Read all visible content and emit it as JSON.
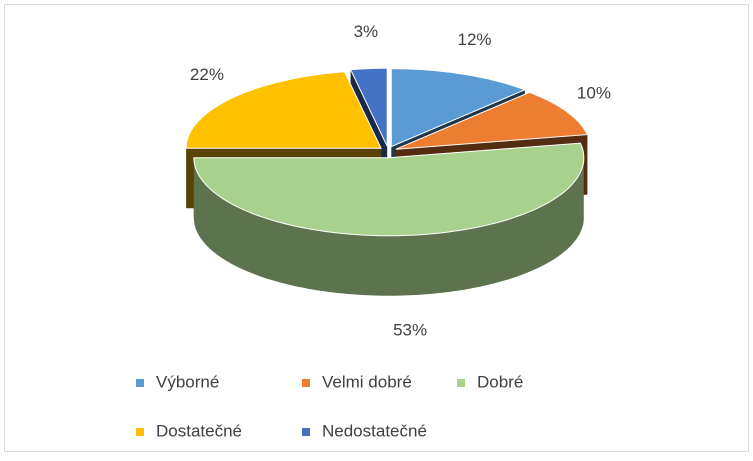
{
  "chart_data": {
    "type": "pie3d",
    "categories": [
      "Výborné",
      "Velmi dobré",
      "Dobré",
      "Dostatečné",
      "Nedostatečné"
    ],
    "values": [
      12,
      10,
      53,
      22,
      3
    ],
    "value_labels": [
      "12%",
      "10%",
      "53%",
      "22%",
      "3%"
    ],
    "colors": [
      "#5b9bd5",
      "#ed7d31",
      "#a9d18e",
      "#ffc000",
      "#4472c4"
    ],
    "legend": "bottom"
  }
}
